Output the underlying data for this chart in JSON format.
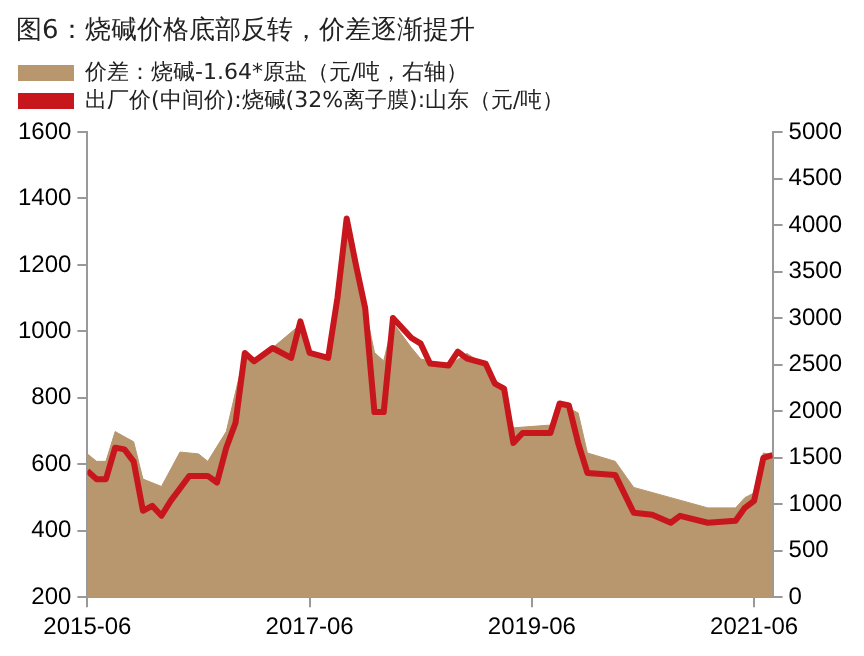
{
  "chart_data": {
    "type": "line",
    "title": "图6：烧碱价格底部反转，价差逐渐提升",
    "series": [
      {
        "name": "价差：烧碱-1.64*原盐（元/吨，右轴）",
        "type": "area",
        "axis": "y2",
        "color": "#b8966e",
        "x": [
          "2015-06",
          "2015-07",
          "2015-08",
          "2015-09",
          "2015-11",
          "2015-12",
          "2016-02",
          "2016-04",
          "2016-06",
          "2016-07",
          "2016-09",
          "2016-11",
          "2016-12",
          "2017-02",
          "2017-05",
          "2017-06",
          "2017-08",
          "2017-09",
          "2017-10",
          "2017-12",
          "2018-01",
          "2018-02",
          "2018-03",
          "2018-05",
          "2018-06",
          "2018-09",
          "2018-11",
          "2019-01",
          "2019-03",
          "2019-04",
          "2019-08",
          "2019-09",
          "2019-11",
          "2019-12",
          "2020-03",
          "2020-05",
          "2020-09",
          "2021-01",
          "2021-04",
          "2021-05",
          "2021-06",
          "2021-07",
          "2021-08"
        ],
        "values": [
          1540,
          1460,
          1460,
          1780,
          1670,
          1270,
          1190,
          1560,
          1540,
          1460,
          1780,
          2630,
          2540,
          2680,
          2930,
          2630,
          2580,
          3210,
          4060,
          3110,
          2630,
          2540,
          2950,
          2680,
          2560,
          2490,
          2620,
          2490,
          2210,
          1820,
          1850,
          2080,
          1980,
          1550,
          1460,
          1180,
          1070,
          960,
          960,
          1070,
          1120,
          1550,
          1530
        ]
      },
      {
        "name": "出厂价(中间价):烧碱(32%离子膜):山东（元/吨）",
        "type": "line",
        "color": "#c8161d",
        "x": [
          "2015-06",
          "2015-07",
          "2015-08",
          "2015-09",
          "2015-10",
          "2015-11",
          "2015-12",
          "2016-01",
          "2016-02",
          "2016-03",
          "2016-05",
          "2016-07",
          "2016-08",
          "2016-09",
          "2016-10",
          "2016-11",
          "2016-12",
          "2017-02",
          "2017-04",
          "2017-05",
          "2017-06",
          "2017-08",
          "2017-09",
          "2017-10",
          "2017-11",
          "2017-12",
          "2018-01",
          "2018-02",
          "2018-03",
          "2018-05",
          "2018-06",
          "2018-07",
          "2018-09",
          "2018-10",
          "2018-11",
          "2019-01",
          "2019-02",
          "2019-03",
          "2019-04",
          "2019-05",
          "2019-08",
          "2019-09",
          "2019-10",
          "2019-11",
          "2019-12",
          "2020-03",
          "2020-05",
          "2020-07",
          "2020-09",
          "2020-10",
          "2021-01",
          "2021-04",
          "2021-05",
          "2021-06",
          "2021-07",
          "2021-08"
        ],
        "values": [
          580,
          555,
          555,
          650,
          645,
          608,
          460,
          475,
          445,
          490,
          565,
          565,
          545,
          650,
          725,
          935,
          910,
          950,
          920,
          1030,
          935,
          920,
          1100,
          1340,
          1200,
          1070,
          757,
          757,
          1040,
          980,
          963,
          903,
          897,
          939,
          918,
          903,
          843,
          828,
          664,
          694,
          694,
          783,
          777,
          664,
          574,
          568,
          454,
          448,
          424,
          445,
          424,
          430,
          469,
          490,
          619,
          628
        ]
      }
    ],
    "xlim": [
      "2015-06",
      "2021-08"
    ],
    "xticks": [
      "2015-06",
      "2017-06",
      "2019-06",
      "2021-06"
    ],
    "ylim": [
      200,
      1600
    ],
    "yticks": [
      200,
      400,
      600,
      800,
      1000,
      1200,
      1400,
      1600
    ],
    "y2lim": [
      0,
      5000
    ],
    "y2ticks": [
      0,
      500,
      1000,
      1500,
      2000,
      2500,
      3000,
      3500,
      4000,
      4500,
      5000
    ],
    "grid": false,
    "legend": "top left",
    "marker": "none",
    "line_style": "solid"
  }
}
